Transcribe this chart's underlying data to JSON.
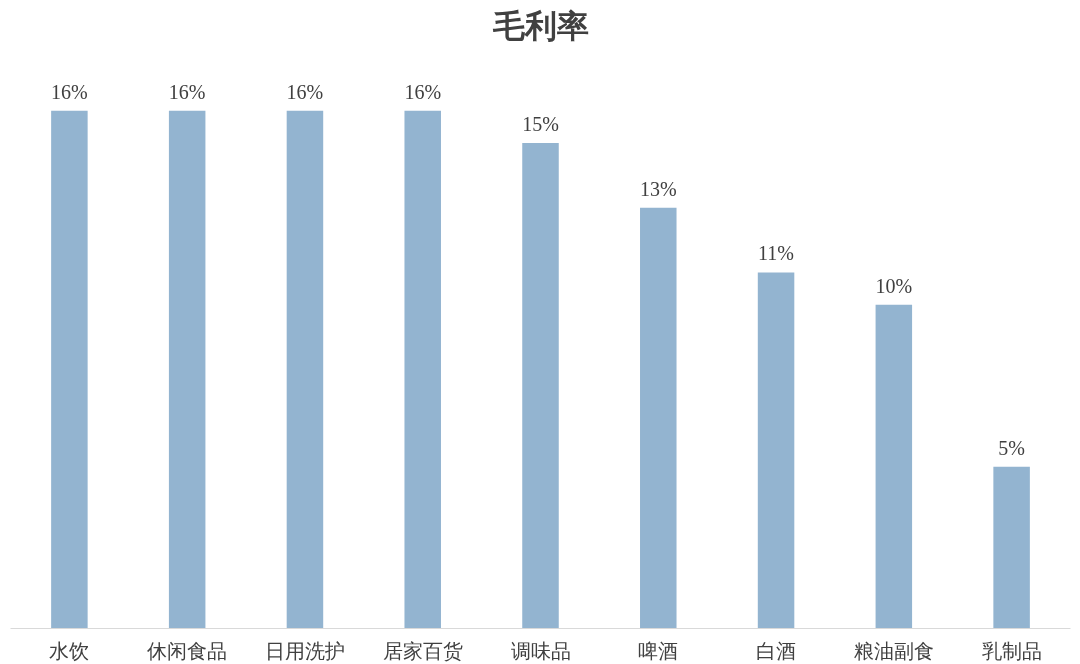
{
  "chart_data": {
    "type": "bar",
    "title": "毛利率",
    "categories": [
      "水饮",
      "休闲食品",
      "日用洗护",
      "居家百货",
      "调味品",
      "啤酒",
      "白酒",
      "粮油副食",
      "乳制品"
    ],
    "values": [
      16,
      16,
      16,
      16,
      15,
      13,
      11,
      10,
      5
    ],
    "value_labels": [
      "16%",
      "16%",
      "16%",
      "16%",
      "15%",
      "13%",
      "11%",
      "10%",
      "5%"
    ],
    "color": "#93b4d0"
  }
}
